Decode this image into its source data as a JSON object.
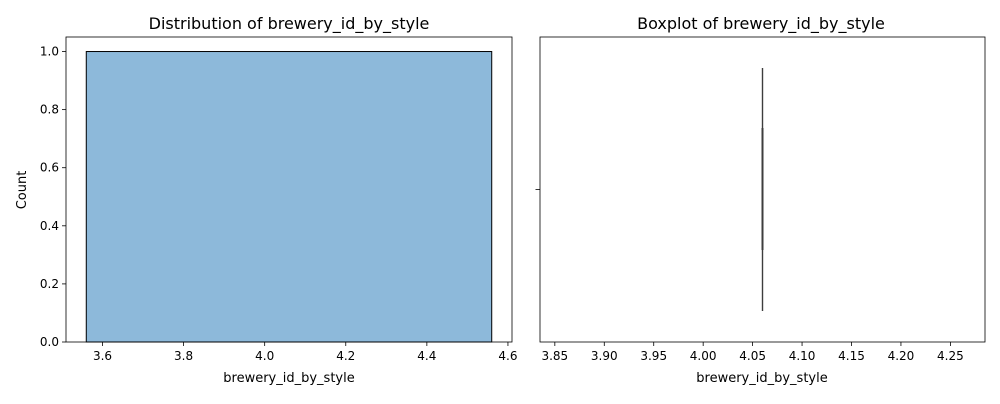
{
  "chart_data": [
    {
      "type": "histogram",
      "title": "Distribution of brewery_id_by_style",
      "xlabel": "brewery_id_by_style",
      "ylabel": "Count",
      "xlim": [
        3.51,
        4.61
      ],
      "ylim": [
        0,
        1.05
      ],
      "xticks": [
        3.6,
        3.8,
        4.0,
        4.2,
        4.4,
        4.6
      ],
      "xtick_labels": [
        "3.6",
        "3.8",
        "4.0",
        "4.2",
        "4.4",
        "4.6"
      ],
      "yticks": [
        0.0,
        0.2,
        0.4,
        0.6,
        0.8,
        1.0
      ],
      "ytick_labels": [
        "0.0",
        "0.2",
        "0.4",
        "0.6",
        "0.8",
        "1.0"
      ],
      "bins": [
        {
          "x_start": 3.56,
          "x_end": 4.56,
          "count": 1
        }
      ],
      "bar_color": "#8db9da",
      "edge_color": "#000000",
      "grid": false
    },
    {
      "type": "boxplot",
      "title": "Boxplot of brewery_id_by_style",
      "xlabel": "brewery_id_by_style",
      "xlim": [
        3.835,
        4.285
      ],
      "xticks": [
        3.85,
        3.9,
        3.95,
        4.0,
        4.05,
        4.1,
        4.15,
        4.2,
        4.25
      ],
      "xtick_labels": [
        "3.85",
        "3.90",
        "3.95",
        "4.00",
        "4.05",
        "4.10",
        "4.15",
        "4.20",
        "4.25"
      ],
      "values": [
        4.06
      ],
      "min": 4.06,
      "q1": 4.06,
      "median": 4.06,
      "q3": 4.06,
      "max": 4.06,
      "box_color": "#3d3d3d",
      "grid": false
    }
  ]
}
